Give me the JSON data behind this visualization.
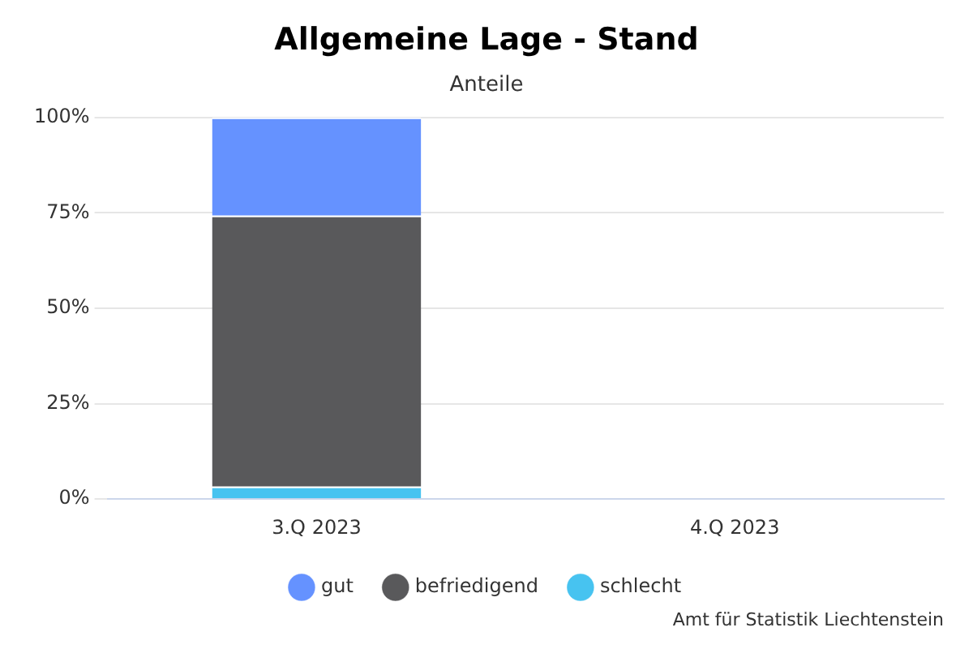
{
  "chart_data": {
    "type": "bar",
    "title": "Allgemeine Lage - Stand",
    "subtitle": "Anteile",
    "stacked": true,
    "categories": [
      "3.Q 2023",
      "4.Q 2023"
    ],
    "series": [
      {
        "name": "schlecht",
        "color": "#47c3f0",
        "values": [
          3.3,
          null
        ]
      },
      {
        "name": "befriedigend",
        "color": "#59595b",
        "values": [
          71.0,
          null
        ]
      },
      {
        "name": "gut",
        "color": "#6592ff",
        "values": [
          25.7,
          null
        ]
      }
    ],
    "ylim": [
      0,
      100
    ],
    "yticks": [
      {
        "value": 0,
        "label": "0%"
      },
      {
        "value": 25,
        "label": "25%"
      },
      {
        "value": 50,
        "label": "50%"
      },
      {
        "value": 75,
        "label": "75%"
      },
      {
        "value": 100,
        "label": "100%"
      }
    ],
    "grid": "y",
    "legend": "bottom",
    "annotations": [
      "Amt für Statistik Liechtenstein"
    ]
  }
}
